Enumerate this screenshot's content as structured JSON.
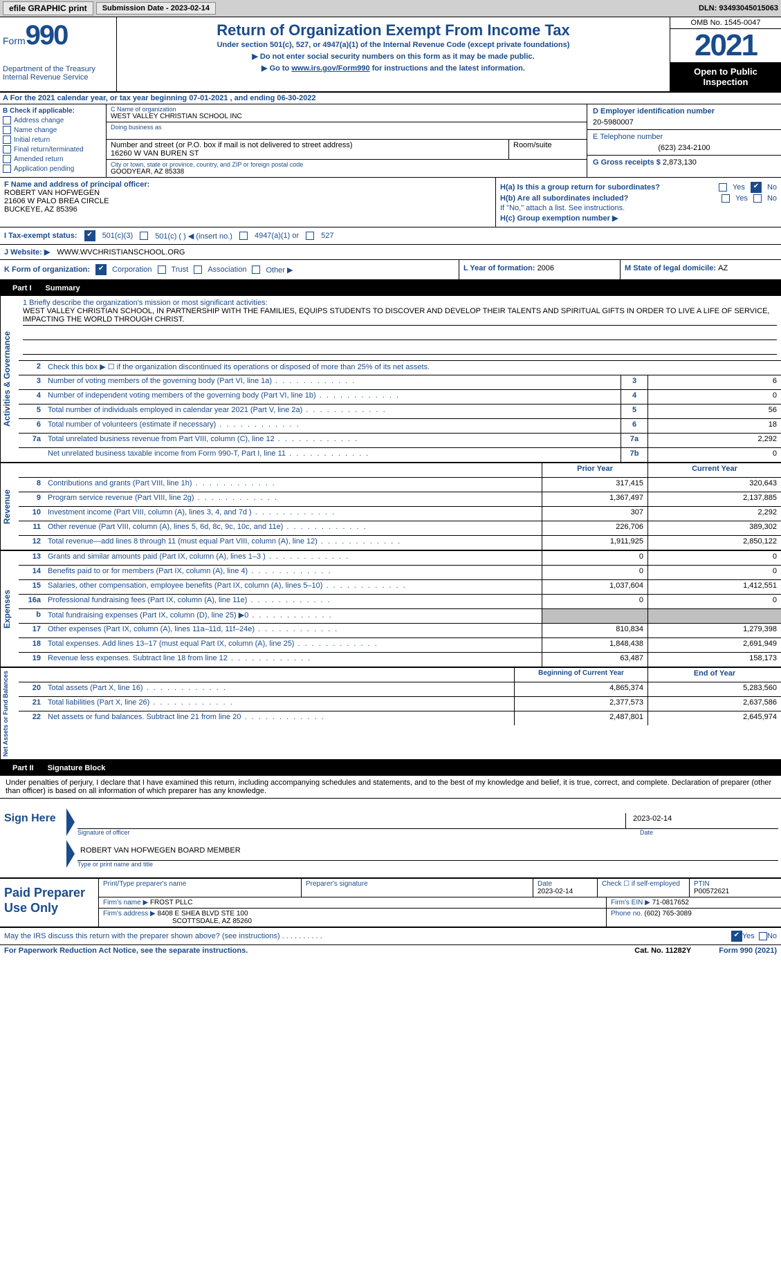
{
  "top": {
    "efile": "efile GRAPHIC print",
    "sub_date_label": "Submission Date - ",
    "sub_date": "2023-02-14",
    "dln_label": "DLN: ",
    "dln": "93493045015063"
  },
  "header": {
    "form_label": "Form",
    "form_num": "990",
    "dept": "Department of the Treasury Internal Revenue Service",
    "title": "Return of Organization Exempt From Income Tax",
    "sub1": "Under section 501(c), 527, or 4947(a)(1) of the Internal Revenue Code (except private foundations)",
    "sub2": "▶ Do not enter social security numbers on this form as it may be made public.",
    "sub3_pre": "▶ Go to ",
    "sub3_link": "www.irs.gov/Form990",
    "sub3_post": " for instructions and the latest information.",
    "omb": "OMB No. 1545-0047",
    "year": "2021",
    "open": "Open to Public Inspection"
  },
  "row_a": "A For the 2021 calendar year, or tax year beginning 07-01-2021   , and ending 06-30-2022",
  "col_b": {
    "title": "B Check if applicable:",
    "items": [
      "Address change",
      "Name change",
      "Initial return",
      "Final return/terminated",
      "Amended return",
      "Application pending"
    ]
  },
  "col_c": {
    "name_lbl": "C Name of organization",
    "name_val": "WEST VALLEY CHRISTIAN SCHOOL INC",
    "dba_lbl": "Doing business as",
    "addr_lbl": "Number and street (or P.O. box if mail is not delivered to street address)",
    "addr_val": "16260 W VAN BUREN ST",
    "room_lbl": "Room/suite",
    "city_lbl": "City or town, state or province, country, and ZIP or foreign postal code",
    "city_val": "GOODYEAR, AZ  85338"
  },
  "col_d": {
    "ein_lbl": "D Employer identification number",
    "ein_val": "20-5980007",
    "tel_lbl": "E Telephone number",
    "tel_val": "(623) 234-2100",
    "gross_lbl": "G Gross receipts $ ",
    "gross_val": "2,873,130"
  },
  "col_f": {
    "lbl": "F  Name and address of principal officer:",
    "name": "ROBERT VAN HOFWEGEN",
    "addr1": "21606 W PALO BREA CIRCLE",
    "addr2": "BUCKEYE, AZ  85396"
  },
  "col_h": {
    "ha": "H(a)  Is this a group return for subordinates?",
    "hb": "H(b)  Are all subordinates included?",
    "hb_note": "If \"No,\" attach a list. See instructions.",
    "hc": "H(c)  Group exemption number ▶",
    "yes": "Yes",
    "no": "No"
  },
  "row_i": {
    "lbl": "I    Tax-exempt status:",
    "opts": [
      "501(c)(3)",
      "501(c) (  ) ◀ (insert no.)",
      "4947(a)(1) or",
      "527"
    ]
  },
  "row_j": {
    "lbl": "J   Website: ▶",
    "val": "WWW.WVCHRISTIANSCHOOL.ORG"
  },
  "row_k": {
    "lbl": "K Form of organization:",
    "opts": [
      "Corporation",
      "Trust",
      "Association",
      "Other ▶"
    ],
    "l_lbl": "L Year of formation: ",
    "l_val": "2006",
    "m_lbl": "M State of legal domicile: ",
    "m_val": "AZ"
  },
  "part1": {
    "header_num": "Part I",
    "header_title": "Summary",
    "mission_lbl": "1   Briefly describe the organization's mission or most significant activities:",
    "mission_val": "WEST VALLEY CHRISTIAN SCHOOL, IN PARTNERSHIP WITH THE FAMILIES, EQUIPS STUDENTS TO DISCOVER AND DEVELOP THEIR TALENTS AND SPIRITUAL GIFTS IN ORDER TO LIVE A LIFE OF SERVICE, IMPACTING THE WORLD THROUGH CHRIST.",
    "line2": "Check this box ▶ ☐  if the organization discontinued its operations or disposed of more than 25% of its net assets.",
    "vtab_ag": "Activities & Governance",
    "vtab_rev": "Revenue",
    "vtab_exp": "Expenses",
    "vtab_na": "Net Assets or Fund Balances",
    "rows_ag": [
      {
        "n": "3",
        "d": "Number of voting members of the governing body (Part VI, line 1a)",
        "ln": "3",
        "v": "6"
      },
      {
        "n": "4",
        "d": "Number of independent voting members of the governing body (Part VI, line 1b)",
        "ln": "4",
        "v": "0"
      },
      {
        "n": "5",
        "d": "Total number of individuals employed in calendar year 2021 (Part V, line 2a)",
        "ln": "5",
        "v": "56"
      },
      {
        "n": "6",
        "d": "Total number of volunteers (estimate if necessary)",
        "ln": "6",
        "v": "18"
      },
      {
        "n": "7a",
        "d": "Total unrelated business revenue from Part VIII, column (C), line 12",
        "ln": "7a",
        "v": "2,292"
      },
      {
        "n": "",
        "d": "Net unrelated business taxable income from Form 990-T, Part I, line 11",
        "ln": "7b",
        "v": "0"
      }
    ],
    "col_head_prior": "Prior Year",
    "col_head_current": "Current Year",
    "rows_rev": [
      {
        "n": "8",
        "d": "Contributions and grants (Part VIII, line 1h)",
        "p": "317,415",
        "c": "320,643"
      },
      {
        "n": "9",
        "d": "Program service revenue (Part VIII, line 2g)",
        "p": "1,367,497",
        "c": "2,137,885"
      },
      {
        "n": "10",
        "d": "Investment income (Part VIII, column (A), lines 3, 4, and 7d )",
        "p": "307",
        "c": "2,292"
      },
      {
        "n": "11",
        "d": "Other revenue (Part VIII, column (A), lines 5, 6d, 8c, 9c, 10c, and 11e)",
        "p": "226,706",
        "c": "389,302"
      },
      {
        "n": "12",
        "d": "Total revenue—add lines 8 through 11 (must equal Part VIII, column (A), line 12)",
        "p": "1,911,925",
        "c": "2,850,122"
      }
    ],
    "rows_exp": [
      {
        "n": "13",
        "d": "Grants and similar amounts paid (Part IX, column (A), lines 1–3 )",
        "p": "0",
        "c": "0"
      },
      {
        "n": "14",
        "d": "Benefits paid to or for members (Part IX, column (A), line 4)",
        "p": "0",
        "c": "0"
      },
      {
        "n": "15",
        "d": "Salaries, other compensation, employee benefits (Part IX, column (A), lines 5–10)",
        "p": "1,037,604",
        "c": "1,412,551"
      },
      {
        "n": "16a",
        "d": "Professional fundraising fees (Part IX, column (A), line 11e)",
        "p": "0",
        "c": "0"
      },
      {
        "n": "b",
        "d": "Total fundraising expenses (Part IX, column (D), line 25) ▶0",
        "p": "",
        "c": "",
        "shaded": true
      },
      {
        "n": "17",
        "d": "Other expenses (Part IX, column (A), lines 11a–11d, 11f–24e)",
        "p": "810,834",
        "c": "1,279,398"
      },
      {
        "n": "18",
        "d": "Total expenses. Add lines 13–17 (must equal Part IX, column (A), line 25)",
        "p": "1,848,438",
        "c": "2,691,949"
      },
      {
        "n": "19",
        "d": "Revenue less expenses. Subtract line 18 from line 12",
        "p": "63,487",
        "c": "158,173"
      }
    ],
    "col_head_boy": "Beginning of Current Year",
    "col_head_eoy": "End of Year",
    "rows_na": [
      {
        "n": "20",
        "d": "Total assets (Part X, line 16)",
        "p": "4,865,374",
        "c": "5,283,560"
      },
      {
        "n": "21",
        "d": "Total liabilities (Part X, line 26)",
        "p": "2,377,573",
        "c": "2,637,586"
      },
      {
        "n": "22",
        "d": "Net assets or fund balances. Subtract line 21 from line 20",
        "p": "2,487,801",
        "c": "2,645,974"
      }
    ]
  },
  "part2": {
    "header_num": "Part II",
    "header_title": "Signature Block",
    "intro": "Under penalties of perjury, I declare that I have examined this return, including accompanying schedules and statements, and to the best of my knowledge and belief, it is true, correct, and complete. Declaration of preparer (other than officer) is based on all information of which preparer has any knowledge.",
    "sign_here": "Sign Here",
    "sig_officer_lbl": "Signature of officer",
    "sig_date": "2023-02-14",
    "date_lbl": "Date",
    "sig_name": "ROBERT VAN HOFWEGEN  BOARD MEMBER",
    "sig_name_lbl": "Type or print name and title",
    "paid_prep": "Paid Preparer Use Only",
    "prep_name_lbl": "Print/Type preparer's name",
    "prep_sig_lbl": "Preparer's signature",
    "prep_date_lbl": "Date",
    "prep_date": "2023-02-14",
    "check_self_lbl": "Check ☐ if self-employed",
    "ptin_lbl": "PTIN",
    "ptin": "P00572621",
    "firm_name_lbl": "Firm's name    ▶ ",
    "firm_name": "FROST PLLC",
    "firm_ein_lbl": "Firm's EIN ▶ ",
    "firm_ein": "71-0817652",
    "firm_addr_lbl": "Firm's address ▶ ",
    "firm_addr1": "8408 E SHEA BLVD STE 100",
    "firm_addr2": "SCOTTSDALE, AZ  85260",
    "phone_lbl": "Phone no. ",
    "phone": "(602) 765-3089"
  },
  "footer": {
    "discuss": "May the IRS discuss this return with the preparer shown above? (see instructions)",
    "yes": "Yes",
    "no": "No",
    "paperwork": "For Paperwork Reduction Act Notice, see the separate instructions.",
    "cat": "Cat. No. 11282Y",
    "form": "Form 990 (2021)"
  }
}
